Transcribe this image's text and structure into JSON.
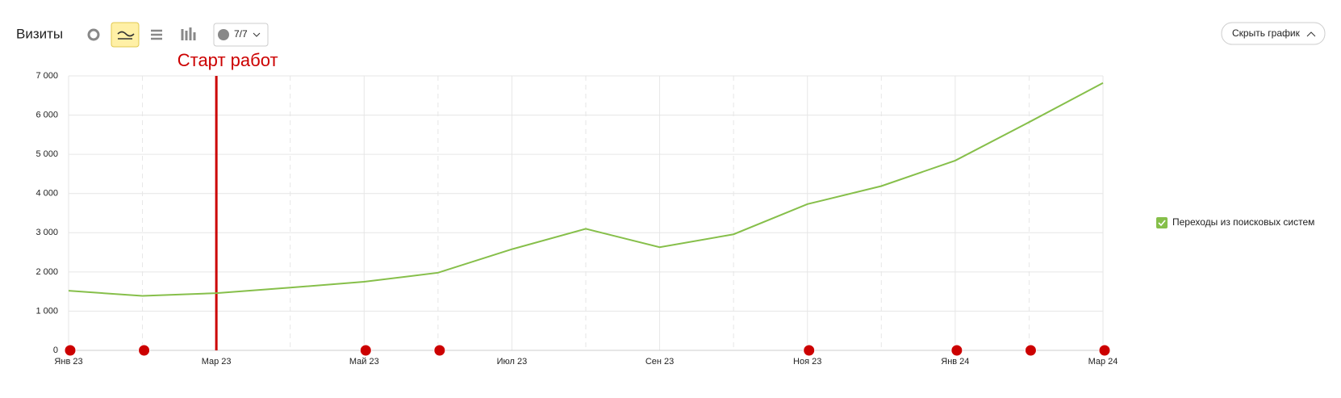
{
  "chart_data": {
    "type": "line",
    "title": "Визиты",
    "comments_counter": "7/7",
    "hide_button": "Скрыть график",
    "categories": [
      "Янв 23",
      null,
      "Мар 23",
      null,
      "Май 23",
      null,
      "Июл 23",
      null,
      "Сен 23",
      null,
      "Ноя 23",
      null,
      "Янв 24",
      null,
      "Мар 24"
    ],
    "series": [
      {
        "name": "Переходы из поисковых систем",
        "color": "#86bf4a",
        "values": [
          1520,
          1390,
          1460,
          1600,
          1750,
          1980,
          2580,
          3100,
          2630,
          2960,
          3730,
          4190,
          4840,
          5820,
          6820
        ]
      }
    ],
    "ylim": [
      0,
      7000
    ],
    "yticks": [
      0,
      {
        "value": 1000,
        "label": "1 000"
      },
      {
        "value": 2000,
        "label": "2 000"
      },
      {
        "value": 3000,
        "label": "3 000"
      },
      {
        "value": 4000,
        "label": "4 000"
      },
      {
        "value": 5000,
        "label": "5 000"
      },
      {
        "value": 6000,
        "label": "6 000"
      },
      {
        "value": 7000,
        "label": "7 000"
      }
    ],
    "grid": true,
    "legend": "right",
    "annotations": [
      {
        "text": "Старт работ",
        "x": "Мар 23",
        "color": "#cc0000"
      }
    ]
  }
}
